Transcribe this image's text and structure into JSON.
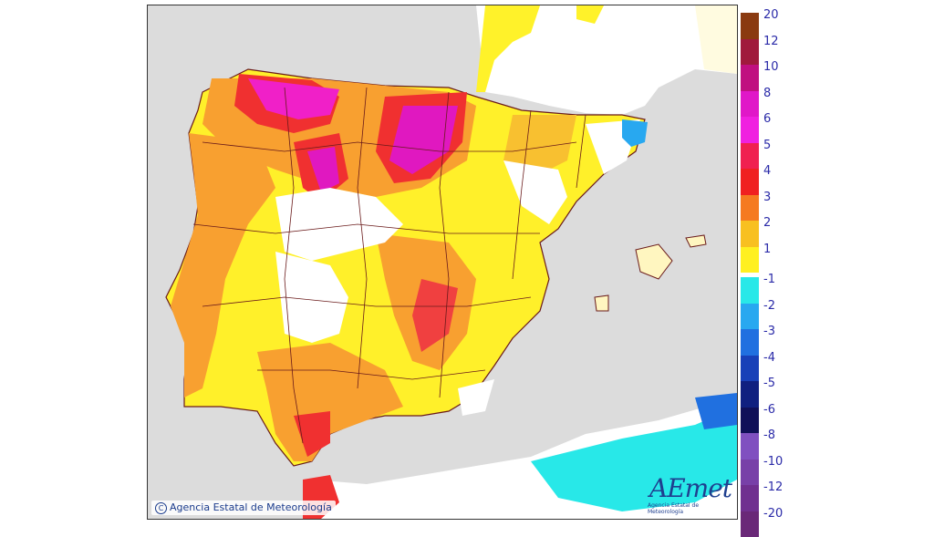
{
  "map": {
    "copyright": "Agencia Estatal de Meteorología",
    "logo_text": "AEmet",
    "logo_subtext": "Agencia Estatal de Meteorología"
  },
  "legend": {
    "positive": [
      {
        "label": "20",
        "color": "#8a3a10"
      },
      {
        "label": "12",
        "color": "#a01a3c"
      },
      {
        "label": "10",
        "color": "#c01080"
      },
      {
        "label": "8",
        "color": "#e018c8"
      },
      {
        "label": "6",
        "color": "#f020e0"
      },
      {
        "label": "5",
        "color": "#f02050"
      },
      {
        "label": "4",
        "color": "#f02020"
      },
      {
        "label": "3",
        "color": "#f57a20"
      },
      {
        "label": "2",
        "color": "#f8c020"
      },
      {
        "label": "1",
        "color": "#fff020"
      }
    ],
    "negative": [
      {
        "label": "-1",
        "color": "#28e8e8"
      },
      {
        "label": "-2",
        "color": "#28a8f0"
      },
      {
        "label": "-3",
        "color": "#2070e0"
      },
      {
        "label": "-4",
        "color": "#1840b8"
      },
      {
        "label": "-5",
        "color": "#102080"
      },
      {
        "label": "-6",
        "color": "#101058"
      },
      {
        "label": "-8",
        "color": "#8050c0"
      },
      {
        "label": "-10",
        "color": "#7840a8"
      },
      {
        "label": "-12",
        "color": "#703090"
      },
      {
        "label": "-20",
        "color": "#6a2878"
      }
    ]
  }
}
